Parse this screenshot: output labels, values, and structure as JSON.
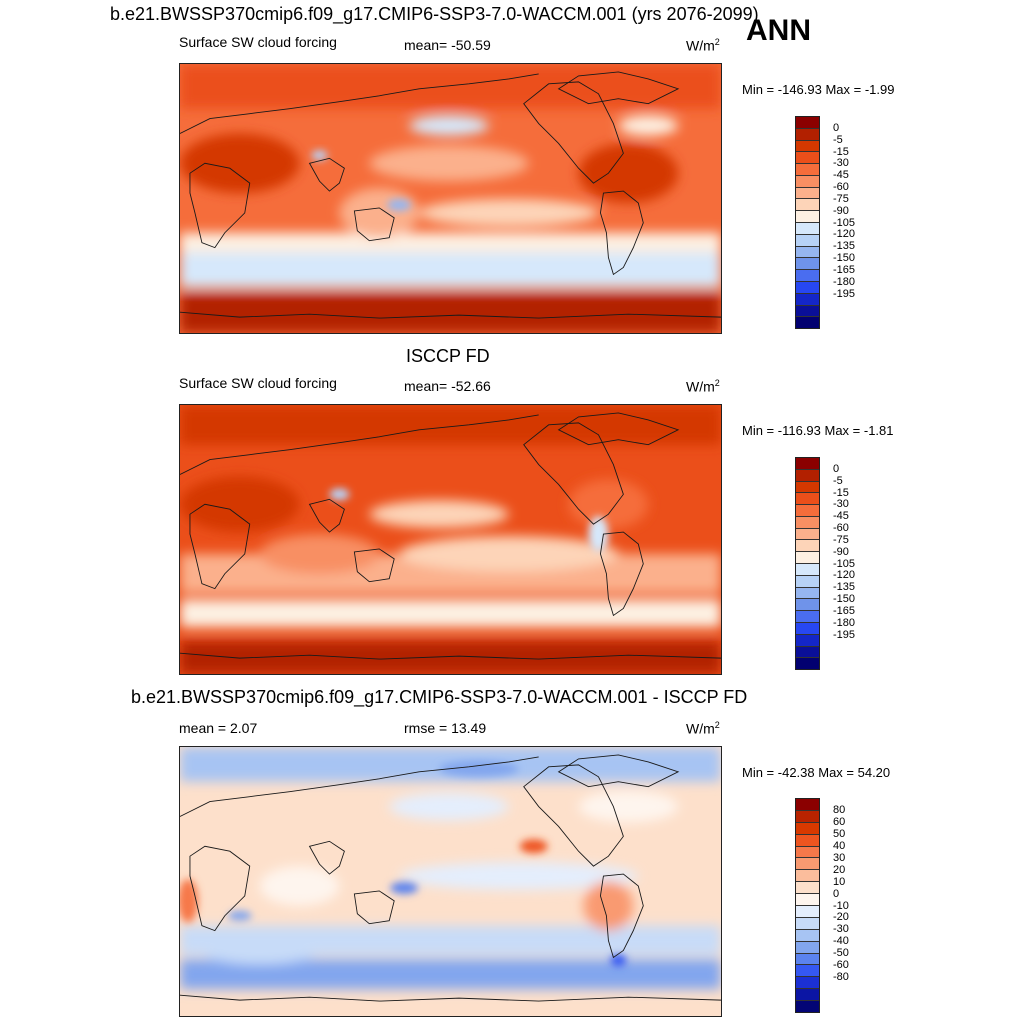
{
  "season": "ANN",
  "panels": [
    {
      "id": "model",
      "title": "b.e21.BWSSP370cmip6.f09_g17.CMIP6-SSP3-7.0-WACCM.001 (yrs 2076-2099)",
      "left_label": "Surface SW cloud forcing",
      "center_label": "mean= -50.59",
      "units": "W/m",
      "units_sup": "2",
      "minmax": "Min = -146.93 Max =  -1.99",
      "colorbar_key": "abs"
    },
    {
      "id": "obs",
      "title": "ISCCP FD",
      "left_label": "Surface SW cloud forcing",
      "center_label": "mean= -52.66",
      "units": "W/m",
      "units_sup": "2",
      "minmax": "Min = -116.93 Max =  -1.81",
      "colorbar_key": "abs"
    },
    {
      "id": "diff",
      "title": "b.e21.BWSSP370cmip6.f09_g17.CMIP6-SSP3-7.0-WACCM.001 - ISCCP FD",
      "left_label": "mean =   2.07",
      "center_label": "rmse =  13.49",
      "units": "W/m",
      "units_sup": "2",
      "minmax": "Min = -42.38 Max =  54.20",
      "colorbar_key": "diff"
    }
  ],
  "colorbars": {
    "abs": {
      "colors": [
        "#8b0000",
        "#b22000",
        "#d43800",
        "#eb4f1a",
        "#f56d3b",
        "#f88f63",
        "#fbb08c",
        "#fdd4b8",
        "#fdf0e2",
        "#d6e8fb",
        "#b7d2f6",
        "#96b6f0",
        "#6f93ea",
        "#4a6df0",
        "#2747f2",
        "#1426c8",
        "#0a0f98",
        "#020070"
      ],
      "labels": [
        "0",
        "-5",
        "-15",
        "-30",
        "-45",
        "-60",
        "-75",
        "-90",
        "-105",
        "-120",
        "-135",
        "-150",
        "-165",
        "-180",
        "-195"
      ]
    },
    "diff": {
      "colors": [
        "#8b0000",
        "#b82300",
        "#d83900",
        "#ee5520",
        "#f6784a",
        "#f99a71",
        "#fbbd9c",
        "#fde0cb",
        "#fef5ee",
        "#e4eefd",
        "#c7dbf8",
        "#a7c4f3",
        "#82a6ee",
        "#5b83ee",
        "#3558f2",
        "#1b30d4",
        "#0b15a4",
        "#030575"
      ],
      "labels": [
        "80",
        "60",
        "50",
        "40",
        "30",
        "20",
        "10",
        "0",
        "-10",
        "-20",
        "-30",
        "-40",
        "-50",
        "-60",
        "-80"
      ]
    }
  }
}
